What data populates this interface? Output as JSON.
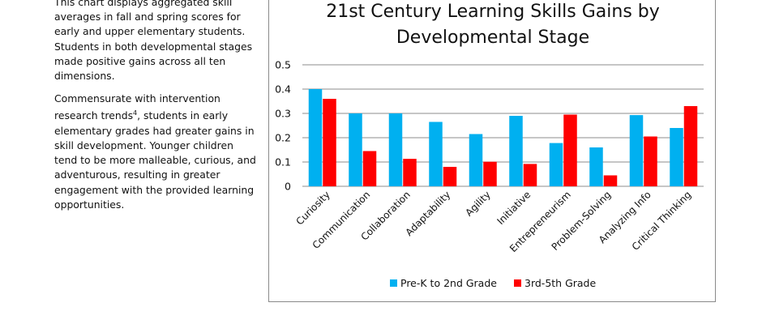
{
  "text": {
    "para1": "This chart displays aggregated skill averages in fall and spring scores for early and upper elementary students. Students in both developmental stages made positive gains across all ten dimensions.",
    "para2_before": "Commensurate with intervention research trends",
    "para2_sup": "4",
    "para2_after": ", students in early elementary grades had greater gains in skill development. Younger children tend to be more malleable, curious, and adventurous, resulting in greater engagement with the provided learning opportunities."
  },
  "chart_data": {
    "type": "bar",
    "title_line1": "21st Century Learning Skills Gains by",
    "title_line2": "Developmental Stage",
    "categories": [
      "Curiosity",
      "Communication",
      "Collaboration",
      "Adaptability",
      "Agility",
      "Initiative",
      "Entrepreneurism",
      "Problem-Solving",
      "Analyzing Info",
      "Critical Thinking"
    ],
    "series": [
      {
        "name": "Pre-K to 2nd Grade",
        "color": "#00b0f0",
        "values": [
          0.4,
          0.3,
          0.3,
          0.265,
          0.215,
          0.29,
          0.178,
          0.16,
          0.293,
          0.24
        ]
      },
      {
        "name": "3rd-5th Grade",
        "color": "#ff0000",
        "values": [
          0.36,
          0.145,
          0.113,
          0.08,
          0.101,
          0.092,
          0.295,
          0.045,
          0.205,
          0.33
        ]
      }
    ],
    "ylim": [
      0,
      0.5
    ],
    "yticks": [
      "0",
      "0.1",
      "0.2",
      "0.3",
      "0.4",
      "0.5"
    ],
    "grid": true,
    "legend": "bottom"
  }
}
